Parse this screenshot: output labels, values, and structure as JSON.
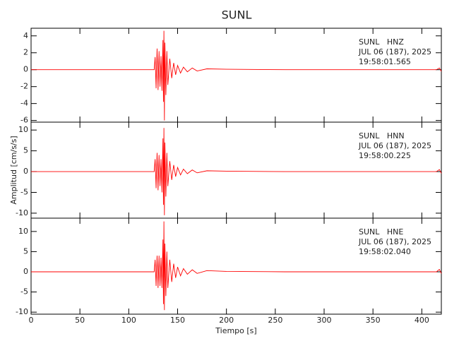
{
  "chart_data": [
    {
      "type": "line",
      "title": "SUNL",
      "color": "#ff0000",
      "annotations": [
        "SUNL   HNZ",
        "JUL 06 (187), 2025",
        "19:58:01.565"
      ],
      "x": [
        0,
        100,
        126,
        127,
        128,
        129,
        130,
        131,
        132,
        133,
        134,
        135,
        135.5,
        136,
        136.5,
        137,
        138,
        139,
        140,
        142,
        144,
        146,
        148,
        150,
        153,
        156,
        160,
        165,
        170,
        180,
        200,
        260,
        415,
        418,
        420
      ],
      "values": [
        0,
        0,
        0,
        1.5,
        -2.2,
        2.5,
        -2.4,
        2.2,
        -2,
        1.6,
        -2.5,
        3.5,
        -3.8,
        4.6,
        -6,
        3.2,
        -3,
        2.2,
        -1.8,
        1.3,
        -1,
        0.8,
        -0.6,
        0.5,
        -0.4,
        0.3,
        -0.25,
        0.2,
        -0.15,
        0.1,
        0.05,
        0,
        0,
        0.2,
        -0.2
      ],
      "xlim": [
        0,
        420
      ],
      "xticks": [
        0,
        50,
        100,
        150,
        200,
        250,
        300,
        350,
        400
      ],
      "ylim": [
        -6.2,
        4.9
      ],
      "yticks": [
        -6,
        -4,
        -2,
        0,
        2,
        4
      ]
    },
    {
      "type": "line",
      "ylabel": "Amplitud [cm/s/s]",
      "color": "#ff0000",
      "annotations": [
        "SUNL   HNN",
        "JUL 06 (187), 2025",
        "19:58:00.225"
      ],
      "x": [
        0,
        100,
        126,
        127,
        128,
        129,
        130,
        131,
        132,
        133,
        134,
        135,
        135.5,
        136,
        136.5,
        137,
        138,
        139,
        140,
        142,
        144,
        146,
        148,
        150,
        153,
        156,
        160,
        165,
        170,
        180,
        200,
        260,
        415,
        418,
        420
      ],
      "values": [
        0,
        0,
        0,
        3,
        -4,
        4.5,
        -4.5,
        4,
        -3.5,
        3,
        -5,
        8,
        -8,
        10.5,
        -10.5,
        7,
        -6,
        4.5,
        -3.5,
        2.5,
        -2,
        1.6,
        -1.2,
        1,
        -0.8,
        0.6,
        -0.5,
        0.4,
        -0.3,
        0.2,
        0.1,
        0,
        0,
        0.5,
        -0.4
      ],
      "xlim": [
        0,
        420
      ],
      "xticks": [
        0,
        50,
        100,
        150,
        200,
        250,
        300,
        350,
        400
      ],
      "ylim": [
        -11.2,
        11.9
      ],
      "yticks": [
        -10,
        -5,
        0,
        5,
        10
      ]
    },
    {
      "type": "line",
      "xlabel": "Tiempo [s]",
      "color": "#ff0000",
      "annotations": [
        "SUNL   HNE",
        "JUL 06 (187), 2025",
        "19:58:02.040"
      ],
      "x": [
        0,
        100,
        126,
        127,
        128,
        129,
        130,
        131,
        132,
        133,
        134,
        135,
        135.5,
        136,
        136.5,
        137,
        138,
        139,
        140,
        142,
        144,
        146,
        148,
        150,
        153,
        156,
        160,
        165,
        170,
        180,
        200,
        260,
        415,
        418,
        420
      ],
      "values": [
        0,
        0,
        0,
        3,
        -3.5,
        4,
        -4,
        4,
        -3.5,
        3.5,
        -4,
        8,
        -8,
        12.5,
        -9.5,
        7,
        -6,
        5,
        -4,
        3,
        -2.5,
        2,
        -1.5,
        1.2,
        -1,
        0.8,
        -0.6,
        0.5,
        -0.4,
        0.3,
        0.1,
        0,
        0,
        0.6,
        -0.4
      ],
      "xlim": [
        0,
        420
      ],
      "xticks": [
        0,
        50,
        100,
        150,
        200,
        250,
        300,
        350,
        400
      ],
      "ylim": [
        -10.5,
        13.3
      ],
      "yticks": [
        -10,
        -5,
        0,
        5,
        10
      ]
    }
  ]
}
